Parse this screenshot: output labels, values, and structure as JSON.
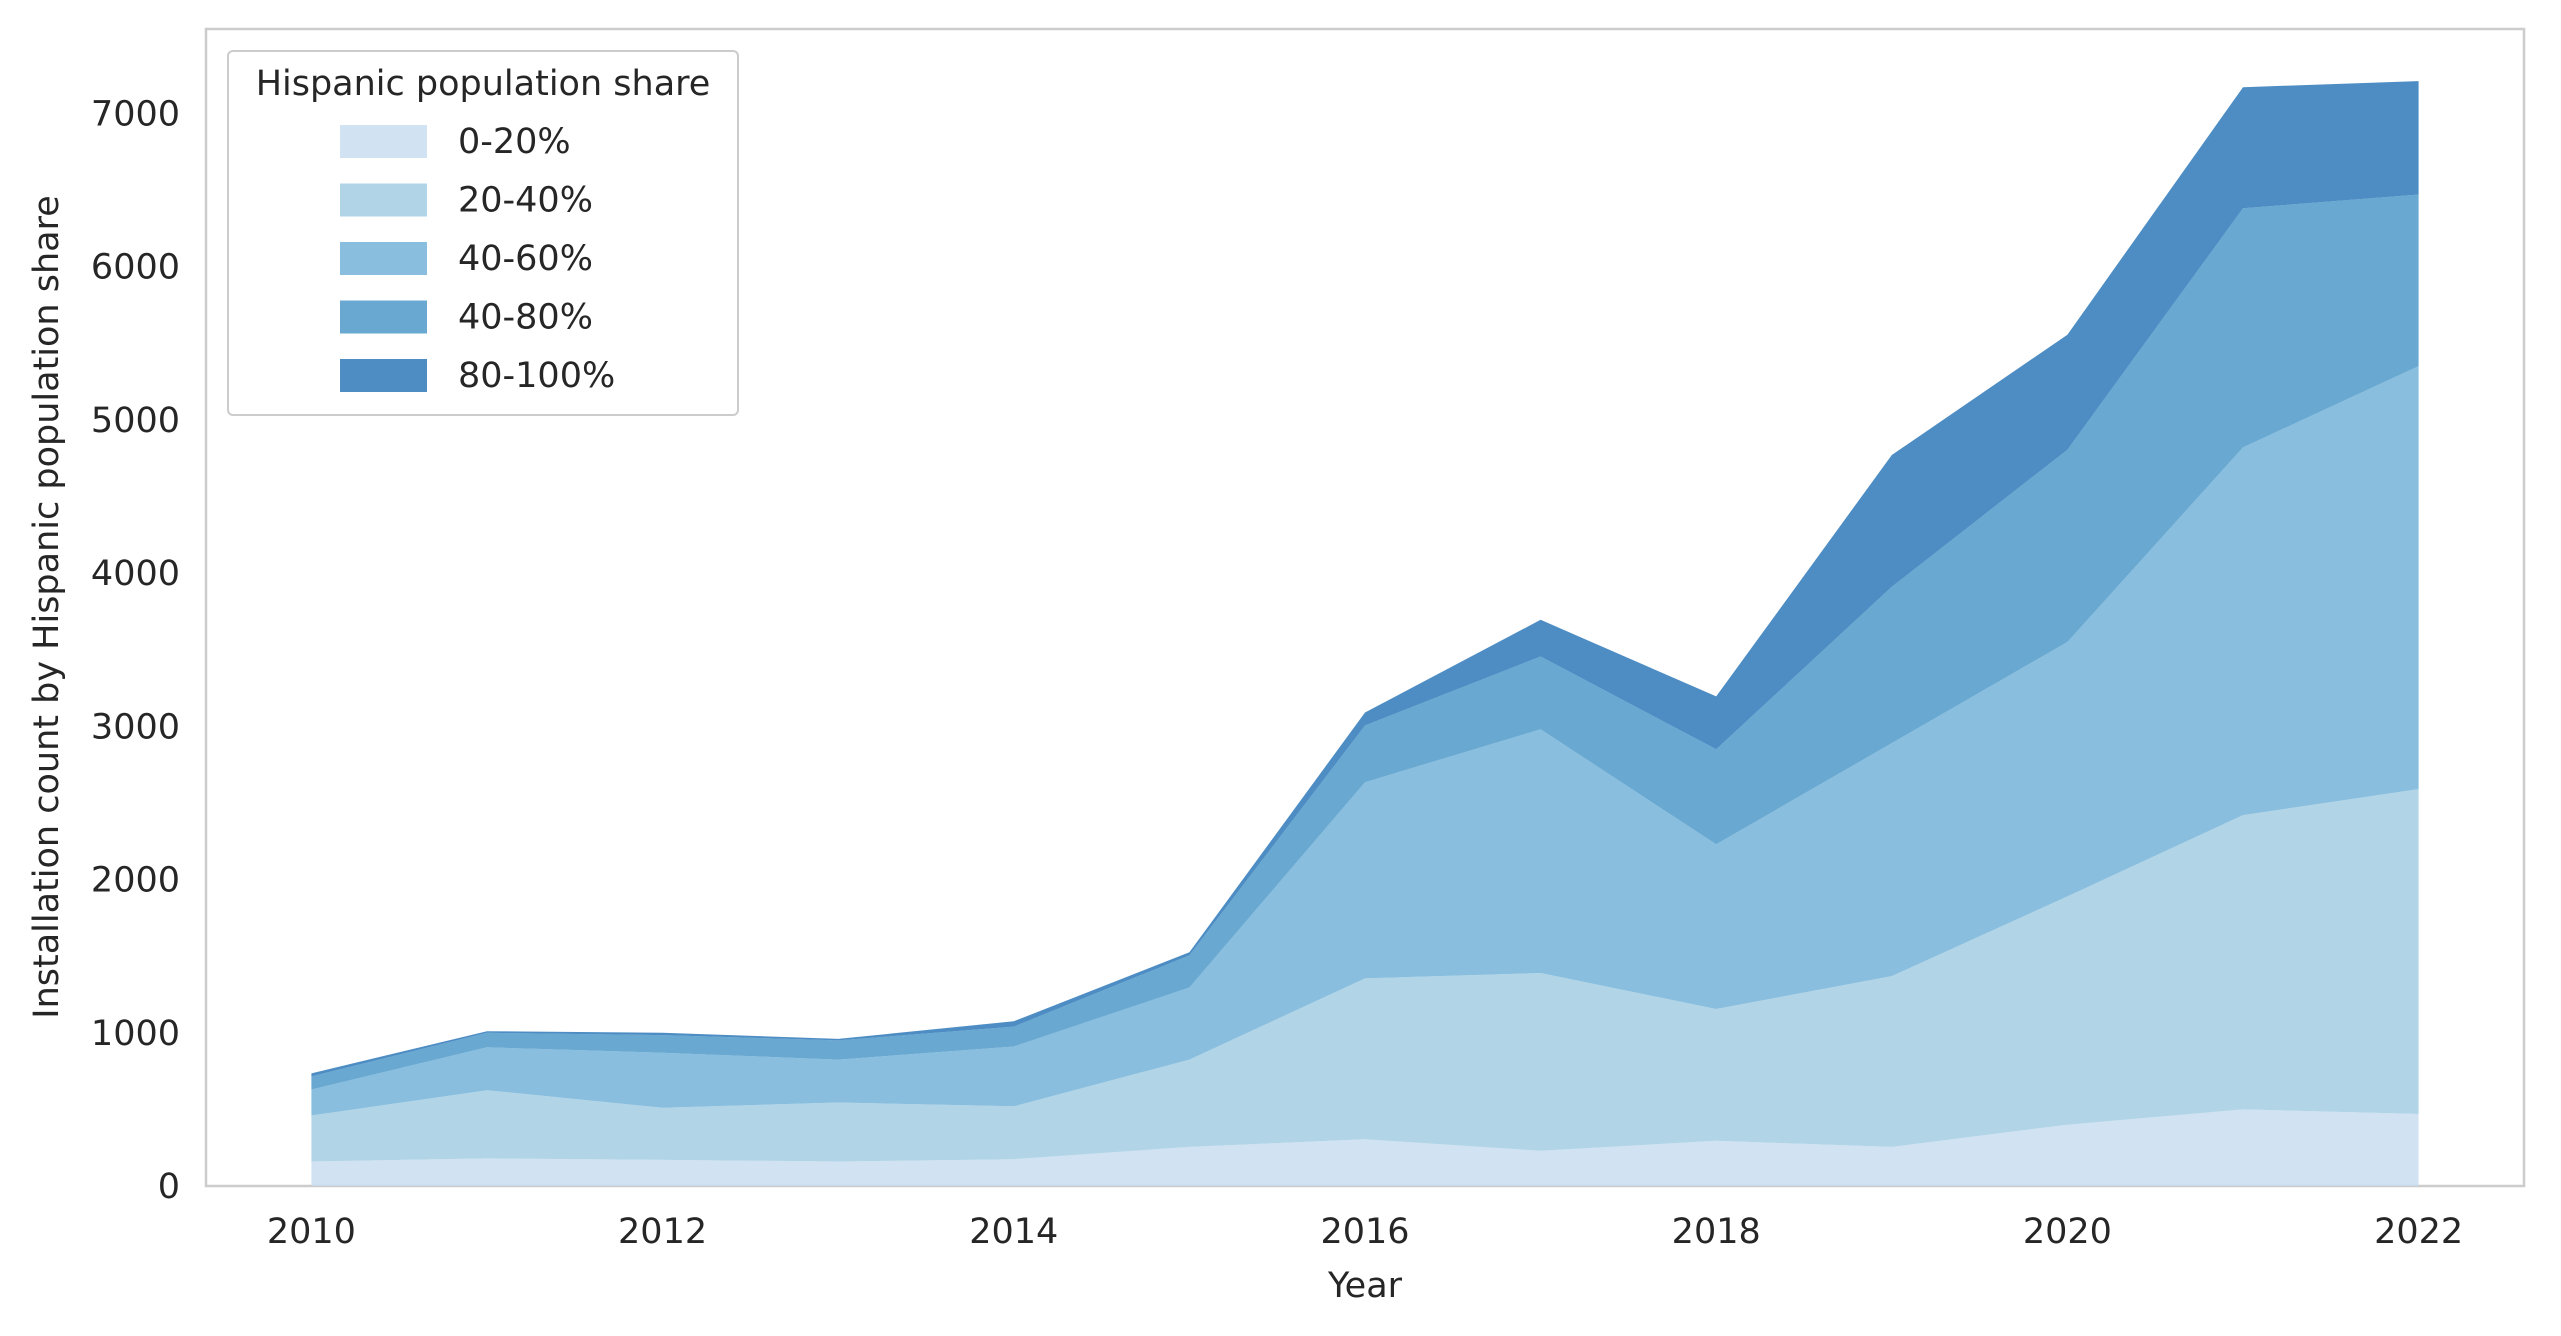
{
  "chart_data": {
    "type": "area",
    "stacked": true,
    "title": "",
    "xlabel": "Year",
    "ylabel": "Installation count by Hispanic population share",
    "x": [
      2010,
      2011,
      2012,
      2013,
      2014,
      2015,
      2016,
      2017,
      2018,
      2019,
      2020,
      2021,
      2022
    ],
    "xlim": [
      2009.4,
      2022.6
    ],
    "ylim": [
      0,
      7550
    ],
    "xticks": [
      2010,
      2012,
      2014,
      2016,
      2018,
      2020,
      2022
    ],
    "yticks": [
      0,
      1000,
      2000,
      3000,
      4000,
      5000,
      6000,
      7000
    ],
    "grid": false,
    "legend": {
      "title": "Hispanic population share",
      "position": "top-left"
    },
    "series": [
      {
        "name": "0-20%",
        "color": "#c6dbef",
        "values": [
          160,
          180,
          170,
          160,
          175,
          255,
          305,
          230,
          295,
          255,
          400,
          500,
          470
        ]
      },
      {
        "name": "20-40%",
        "color": "#9ecae1",
        "values": [
          300,
          445,
          340,
          385,
          345,
          570,
          1050,
          1160,
          860,
          1115,
          1490,
          1920,
          2120
        ]
      },
      {
        "name": "40-60%",
        "color": "#6baed6",
        "values": [
          170,
          280,
          360,
          280,
          390,
          470,
          1280,
          1590,
          1075,
          1520,
          1660,
          2400,
          2760
        ]
      },
      {
        "name": "40-80%",
        "color": "#4292c6",
        "values": [
          85,
          95,
          115,
          125,
          130,
          210,
          370,
          475,
          620,
          1020,
          1255,
          1560,
          1120
        ]
      },
      {
        "name": "80-100%",
        "color": "#2171b5",
        "values": [
          20,
          10,
          15,
          10,
          35,
          20,
          85,
          240,
          345,
          860,
          750,
          790,
          740
        ]
      }
    ]
  }
}
